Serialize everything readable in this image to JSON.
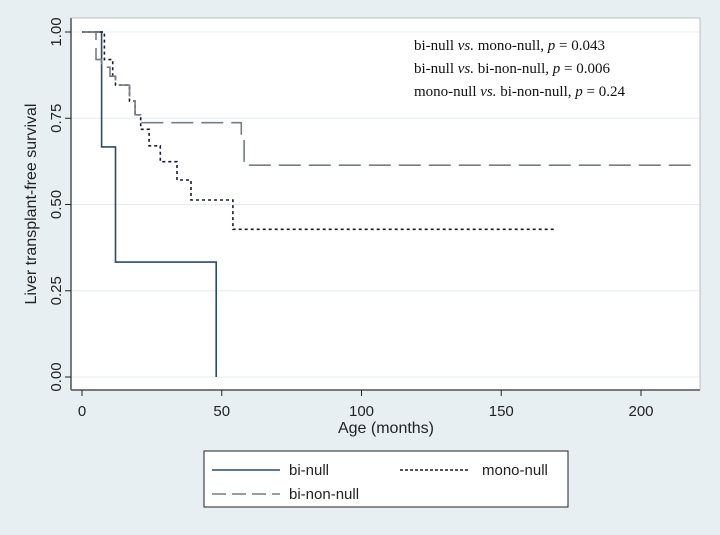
{
  "chart_data": {
    "type": "line",
    "subtype": "kaplan-meier step",
    "xlabel": "Age (months)",
    "ylabel": "Liver transplant-free survival",
    "xlim": [
      -5,
      222
    ],
    "ylim": [
      0,
      1
    ],
    "xticks": [
      0,
      50,
      100,
      150,
      200
    ],
    "yticks": [
      "0.00",
      "0.25",
      "0.50",
      "0.75",
      "1.00"
    ],
    "grid": true,
    "legend_placement": "bottom",
    "annotations": [
      {
        "a": "bi-null ",
        "vs": "vs.",
        "b": " mono-null, ",
        "p": "p",
        "val": " = 0.043"
      },
      {
        "a": "bi-null ",
        "vs": "vs.",
        "b": " bi-non-null, ",
        "p": "p",
        "val": " = 0.006"
      },
      {
        "a": "mono-null ",
        "vs": "vs.",
        "b": " bi-non-null, ",
        "p": "p",
        "val": " = 0.24"
      }
    ],
    "series": [
      {
        "name": "bi-null",
        "color": "#2b4a6f",
        "dash": "",
        "points": [
          [
            0,
            1
          ],
          [
            7,
            1
          ],
          [
            7,
            0.667
          ],
          [
            12,
            0.667
          ],
          [
            12,
            0.333
          ],
          [
            48,
            0.333
          ],
          [
            48,
            0
          ]
        ]
      },
      {
        "name": "mono-null",
        "color": "#1a1a2e",
        "dash": "3,3",
        "points": [
          [
            0,
            1
          ],
          [
            8,
            1
          ],
          [
            8,
            0.92
          ],
          [
            11,
            0.92
          ],
          [
            11,
            0.87
          ],
          [
            12,
            0.87
          ],
          [
            12,
            0.846
          ],
          [
            17,
            0.846
          ],
          [
            17,
            0.8
          ],
          [
            19,
            0.8
          ],
          [
            19,
            0.76
          ],
          [
            21,
            0.76
          ],
          [
            21,
            0.718
          ],
          [
            24,
            0.718
          ],
          [
            24,
            0.67
          ],
          [
            28,
            0.67
          ],
          [
            28,
            0.624
          ],
          [
            34,
            0.624
          ],
          [
            34,
            0.571
          ],
          [
            39,
            0.571
          ],
          [
            39,
            0.513
          ],
          [
            54,
            0.513
          ],
          [
            54,
            0.428
          ],
          [
            169,
            0.428
          ]
        ]
      },
      {
        "name": "bi-non-null",
        "color": "#777d85",
        "dash": "22,8",
        "points": [
          [
            0,
            1
          ],
          [
            5,
            1
          ],
          [
            5,
            0.92
          ],
          [
            7,
            0.92
          ],
          [
            7,
            0.898
          ],
          [
            10,
            0.898
          ],
          [
            10,
            0.872
          ],
          [
            12,
            0.872
          ],
          [
            12,
            0.846
          ],
          [
            17,
            0.846
          ],
          [
            17,
            0.8
          ],
          [
            19,
            0.8
          ],
          [
            19,
            0.76
          ],
          [
            21,
            0.76
          ],
          [
            21,
            0.737
          ],
          [
            57,
            0.737
          ],
          [
            57,
            0.69
          ],
          [
            58,
            0.69
          ],
          [
            58,
            0.614
          ],
          [
            218,
            0.614
          ]
        ]
      }
    ]
  }
}
